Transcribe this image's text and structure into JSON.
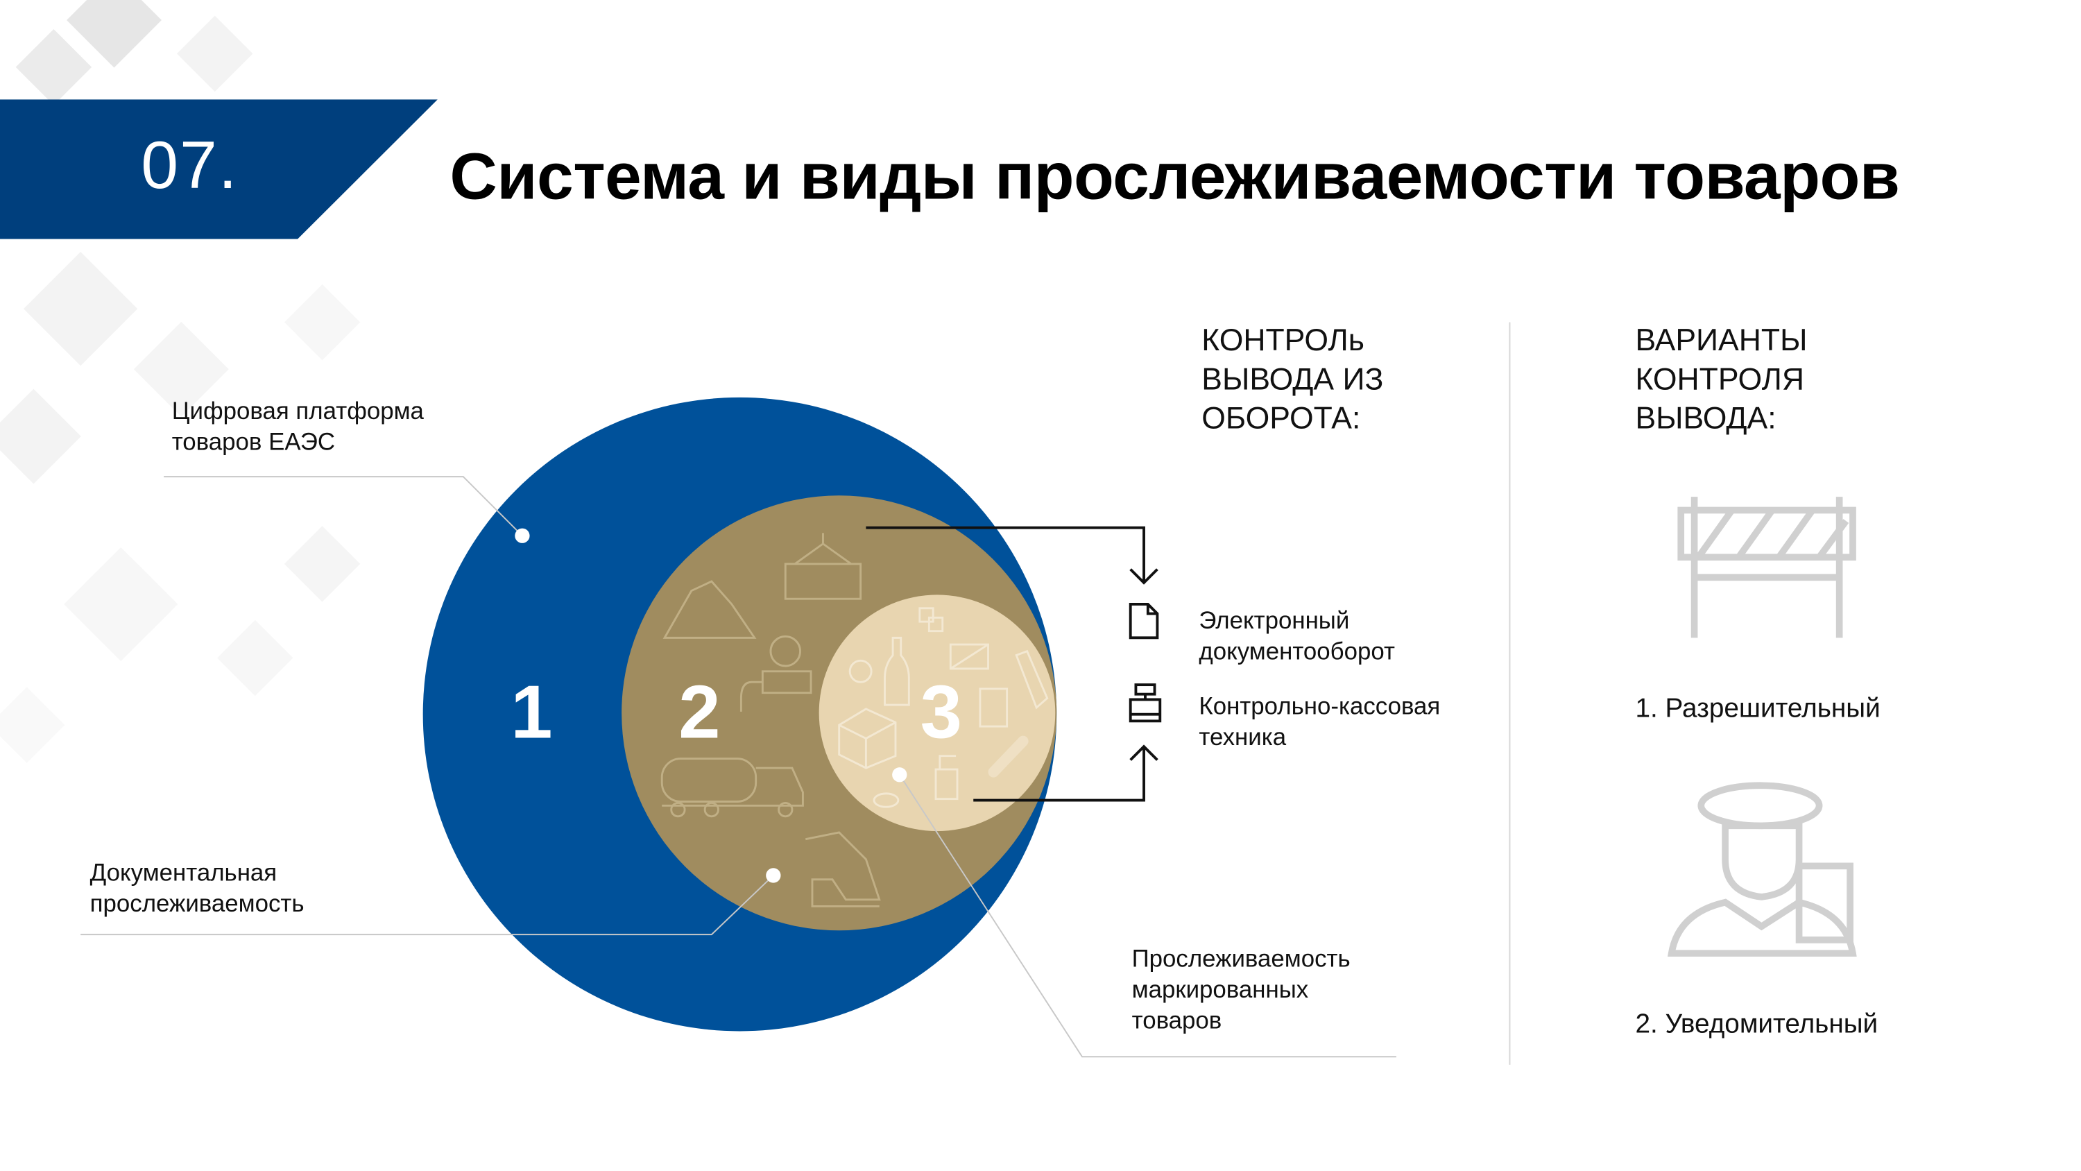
{
  "header": {
    "number": "07.",
    "title": "Система и виды прослеживаемости товаров"
  },
  "colors": {
    "band": "#003f7d",
    "outer_circle": "#00519a",
    "middle_circle": "#a08c5f",
    "inner_circle": "#e8d5b0",
    "icon_gray": "#d0d0d0"
  },
  "diagram": {
    "levels": [
      {
        "number": "1",
        "label": "Цифровая платформа товаров ЕАЭС"
      },
      {
        "number": "2",
        "label": "Документальная прослеживаемость"
      },
      {
        "number": "3",
        "label": "Прослеживаемость маркированных товаров"
      }
    ]
  },
  "control": {
    "heading": "КОНТРОЛь\nВЫВОДА ИЗ\nОБОРОТА:",
    "items": [
      {
        "icon": "document-icon",
        "label_line1": "Электронный",
        "label_line2": "документооборот"
      },
      {
        "icon": "cash-register-icon",
        "label_line1": "Контрольно-кассовая",
        "label_line2": "техника"
      }
    ]
  },
  "variants": {
    "heading": "ВАРИАНТЫ\nКОНТРОЛЯ\nВЫВОДА:",
    "items": [
      {
        "icon": "barrier-icon",
        "label": "1. Разрешительный"
      },
      {
        "icon": "officer-icon",
        "label": "2. Уведомительный"
      }
    ]
  }
}
